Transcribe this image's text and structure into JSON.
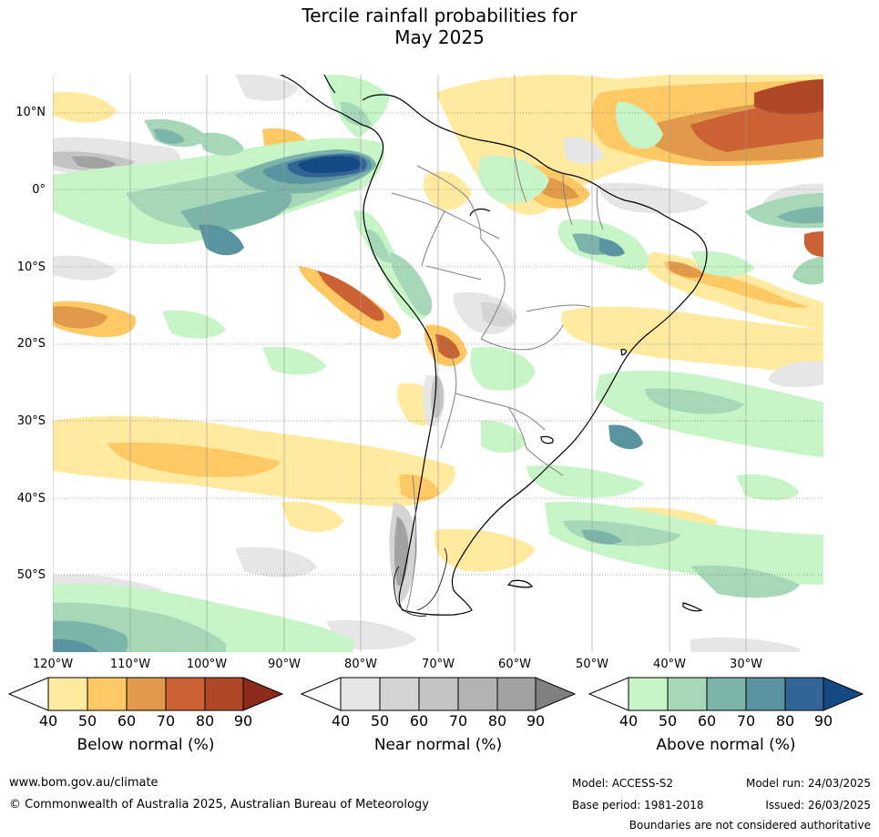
{
  "title": {
    "line1": "Tercile rainfall probabilities for",
    "line2": "May 2025"
  },
  "map": {
    "lat_labels": [
      "10°N",
      "0°",
      "10°S",
      "20°S",
      "30°S",
      "40°S",
      "50°S"
    ],
    "lon_labels": [
      "120°W",
      "110°W",
      "100°W",
      "90°W",
      "80°W",
      "70°W",
      "60°W",
      "50°W",
      "40°W",
      "30°W"
    ],
    "background_color": "#ffffff",
    "coast_color": "#000000",
    "border_color": "#808080",
    "grid_color": "#555555"
  },
  "legends": {
    "below": {
      "title": "Below normal (%)",
      "ticks": [
        "40",
        "50",
        "60",
        "70",
        "80",
        "90"
      ],
      "colors": [
        "#ffeaa0",
        "#fec864",
        "#e09a4a",
        "#cc6234",
        "#b04828",
        "#8c2a1c"
      ]
    },
    "near": {
      "title": "Near normal (%)",
      "ticks": [
        "40",
        "50",
        "60",
        "70",
        "80",
        "90"
      ],
      "colors": [
        "#e6e6e6",
        "#d4d4d4",
        "#c4c4c4",
        "#b4b4b4",
        "#a2a2a2",
        "#808080"
      ]
    },
    "above": {
      "title": "Above normal (%)",
      "ticks": [
        "40",
        "50",
        "60",
        "70",
        "80",
        "90"
      ],
      "colors": [
        "#c8f5c8",
        "#a6d8b8",
        "#7cb4aa",
        "#5a94a0",
        "#336496",
        "#144a86"
      ]
    }
  },
  "footer": {
    "website": "www.bom.gov.au/climate",
    "copyright": "© Commonwealth of Australia 2025, Australian Bureau of Meteorology",
    "model": "Model: ACCESS-S2",
    "model_run": "Model run: 24/03/2025",
    "base_period": "Base period: 1981-2018",
    "issued": "Issued: 26/03/2025",
    "disclaimer": "Boundaries are not considered authoritative"
  }
}
